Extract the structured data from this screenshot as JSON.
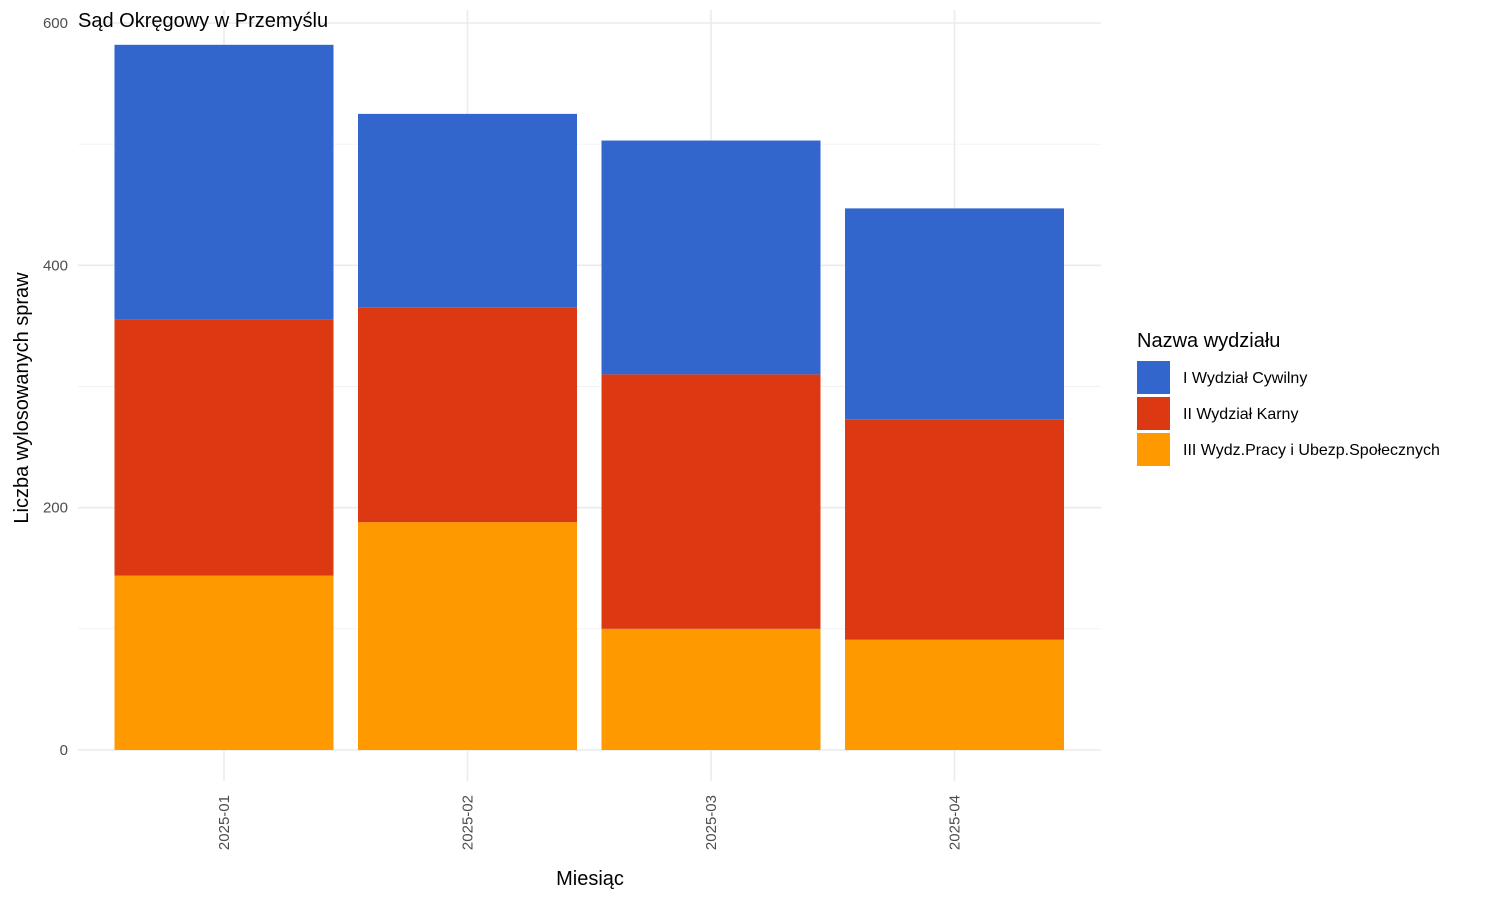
{
  "chart_data": {
    "type": "bar",
    "stacked": true,
    "title": "Sąd Okręgowy w Przemyślu",
    "xlabel": "Miesiąc",
    "ylabel": "Liczba wylosowanych spraw",
    "categories": [
      "2025-01",
      "2025-02",
      "2025-03",
      "2025-04"
    ],
    "ylim": [
      0,
      600
    ],
    "yticks": [
      0,
      200,
      400,
      600
    ],
    "grid": true,
    "legend_title": "Nazwa wydziału",
    "legend_position": "right",
    "series": [
      {
        "name": "I Wydział Cywilny",
        "color": "#3366cc",
        "values": [
          227,
          160,
          193,
          174
        ]
      },
      {
        "name": "II Wydział Karny",
        "color": "#dc3912",
        "values": [
          211,
          177,
          210,
          182
        ]
      },
      {
        "name": "III Wydz.Pracy i Ubezp.Społecznych",
        "color": "#ff9900",
        "values": [
          144,
          188,
          100,
          91
        ]
      }
    ]
  }
}
